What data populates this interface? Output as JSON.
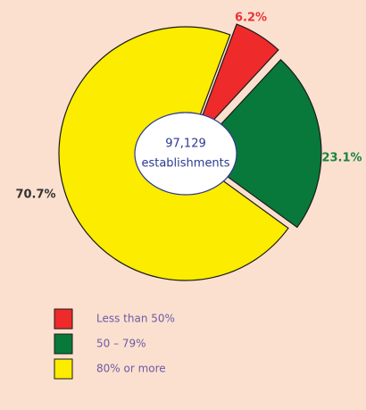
{
  "chart_data": {
    "type": "pie",
    "categories": [
      "Less than 50%",
      "50 – 79%",
      "80% or more"
    ],
    "values": [
      6.2,
      23.1,
      70.7
    ],
    "value_labels": [
      "6.2%",
      "23.1%",
      "70.7%"
    ],
    "colors": [
      "#ee2a2a",
      "#08793a",
      "#fbec00"
    ],
    "label_colors": [
      "#e8333a",
      "#16843f",
      "#333333"
    ],
    "center_label": [
      "97,129",
      "establishments"
    ],
    "legend": "bottom-left"
  }
}
